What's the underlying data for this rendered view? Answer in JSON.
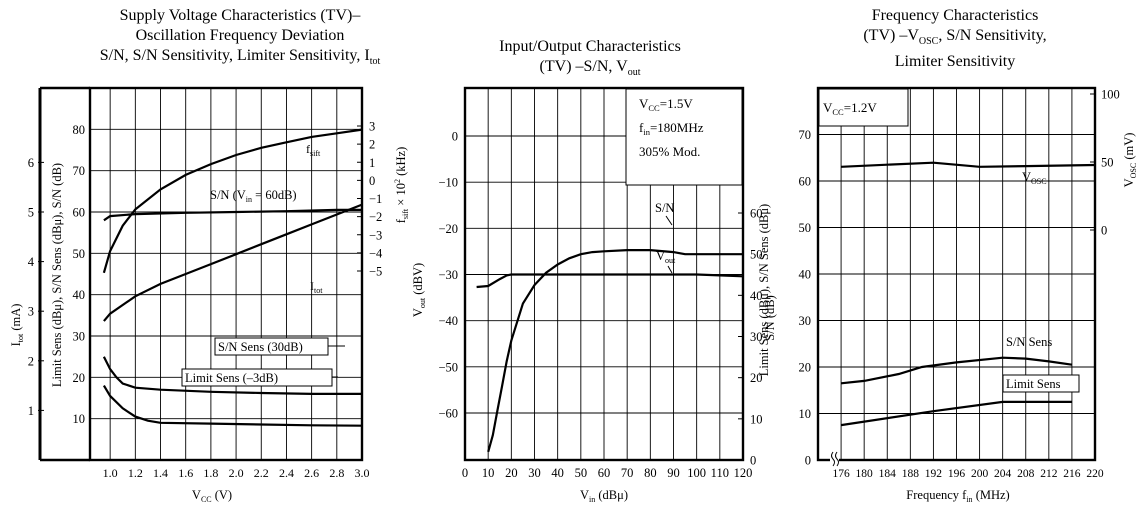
{
  "chart1": {
    "title_l1": "Supply Voltage Characteristics (TV)–",
    "title_l2": "Oscillation Frequency Deviation",
    "title_l3": "S/N, S/N Sensitivity, Limiter Sensitivity, I",
    "title_l3_sub": "tot",
    "xlabel": "V",
    "xlabel_sub": "CC",
    "xlabel_tail": " (V)",
    "ylabel_db": "Limit Sens (dBμ),  S/N Sens (dBμ), S/N (dB)",
    "ylabel_i": "I",
    "ylabel_i_sub": "tot",
    "ylabel_i_tail": " (mA)",
    "ylabel_f": "f",
    "ylabel_f_sub": "sift",
    "ylabel_f_tail": " × 10",
    "ylabel_f_sup": "2",
    "ylabel_f_end": " (kHz)",
    "xticks": [
      "1.0",
      "1.2",
      "1.4",
      "1.6",
      "1.8",
      "2.0",
      "2.2",
      "2.4",
      "2.6",
      "2.8",
      "3.0"
    ],
    "db_ticks": [
      "10",
      "20",
      "30",
      "40",
      "50",
      "60",
      "70",
      "80"
    ],
    "i_ticks": [
      "1",
      "2",
      "3",
      "4",
      "5",
      "6"
    ],
    "f_ticks": [
      "3",
      "2",
      "1",
      "0",
      "−1",
      "−2",
      "−3",
      "−4",
      "−5"
    ],
    "labels": {
      "fsift": "f",
      "fsift_sub": "sift",
      "sn": "S/N (V",
      "sn_sub": "in",
      "sn_tail": " = 60dB)",
      "itot": "I",
      "itot_sub": "tot",
      "snsens": "S/N Sens (30dB)",
      "limsens": "Limit Sens (–3dB)"
    }
  },
  "chart2": {
    "title_l1": "Input/Output Characteristics",
    "title_l2": "(TV) –S/N, V",
    "title_l2_sub": "out",
    "xlabel": "V",
    "xlabel_sub": "in",
    "xlabel_tail": " (dBμ)",
    "ylabel_l": "V",
    "ylabel_l_sub": "out",
    "ylabel_l_tail": " (dBV)",
    "ylabel_r": "S/N (dB)",
    "cond1": "V",
    "cond1_sub": "CC",
    "cond1_tail": "=1.5V",
    "cond2": "f",
    "cond2_sub": "in",
    "cond2_tail": "=180MHz",
    "cond3": "305% Mod.",
    "xticks": [
      "0",
      "10",
      "20",
      "30",
      "40",
      "50",
      "60",
      "70",
      "80",
      "90",
      "100",
      "110",
      "120"
    ],
    "lticks": [
      "0",
      "−10",
      "−20",
      "−30",
      "−40",
      "−50",
      "−60"
    ],
    "rticks": [
      "60",
      "50",
      "40",
      "30",
      "20",
      "10",
      "0"
    ],
    "labels": {
      "sn": "S/N",
      "vout": "V",
      "vout_sub": "out"
    }
  },
  "chart3": {
    "title_l1": "Frequency Characteristics",
    "title_l2": "(TV) –V",
    "title_l2_sub": "OSC",
    "title_l2_tail": ", S/N Sensitivity,",
    "title_l3": "Limiter Sensitivity",
    "xlabel": "Frequency f",
    "xlabel_sub": "in",
    "xlabel_tail": " (MHz)",
    "ylabel_l": "Limit Sens (dBμ), S/N Sens (dBμ)",
    "ylabel_r": "V",
    "ylabel_r_sub": "OSC",
    "ylabel_r_tail": " (mV)",
    "cond": "V",
    "cond_sub": "CC",
    "cond_tail": "=1.2V",
    "xticks": [
      "176",
      "180",
      "184",
      "188",
      "192",
      "196",
      "200",
      "204",
      "208",
      "212",
      "216",
      "220"
    ],
    "lticks": [
      "0",
      "10",
      "20",
      "30",
      "40",
      "50",
      "60",
      "70"
    ],
    "rticks": [
      "100",
      "50",
      "0"
    ],
    "labels": {
      "vosc": "V",
      "vosc_sub": "OSC",
      "snsens": "S/N Sens",
      "limsens": "Limit Sens"
    }
  },
  "chart_data": [
    {
      "type": "line",
      "title": "Supply Voltage Characteristics (TV)– Oscillation Frequency Deviation S/N, S/N Sensitivity, Limiter Sensitivity, Itot",
      "xlabel": "VCC (V)",
      "xlim": [
        0.84,
        3.0
      ],
      "ylim": [
        0,
        90
      ],
      "grid": true,
      "series": [
        {
          "name": "fsift",
          "axis": "fsift",
          "x": [
            0.95,
            1.0,
            1.1,
            1.2,
            1.4,
            1.6,
            1.8,
            2.0,
            2.2,
            2.4,
            2.6,
            2.8,
            3.0
          ],
          "values": [
            -5.1,
            -3.9,
            -2.5,
            -1.6,
            -0.5,
            0.3,
            0.9,
            1.4,
            1.8,
            2.1,
            2.4,
            2.6,
            2.8
          ]
        },
        {
          "name": "S/N (Vin = 60dB)",
          "axis": "dB",
          "x": [
            0.95,
            1.0,
            1.2,
            1.6,
            2.0,
            2.4,
            2.8,
            3.0
          ],
          "values": [
            58,
            59,
            59.5,
            59.8,
            60,
            60.2,
            60.5,
            60.5
          ]
        },
        {
          "name": "Itot",
          "axis": "mA",
          "x": [
            0.95,
            1.0,
            1.2,
            1.4,
            1.6,
            1.8,
            2.0,
            2.2,
            2.4,
            2.6,
            2.8,
            3.0
          ],
          "values": [
            2.8,
            2.95,
            3.3,
            3.55,
            3.75,
            3.95,
            4.15,
            4.35,
            4.55,
            4.75,
            4.95,
            5.15
          ]
        },
        {
          "name": "S/N Sens (30dB)",
          "axis": "dB",
          "x": [
            0.95,
            1.0,
            1.05,
            1.1,
            1.2,
            1.4,
            1.8,
            2.2,
            2.6,
            3.0
          ],
          "values": [
            25,
            22,
            20,
            18.5,
            17.5,
            17,
            16.5,
            16.2,
            16,
            16
          ]
        },
        {
          "name": "Limit Sens (–3dB)",
          "axis": "dB",
          "x": [
            0.95,
            1.0,
            1.1,
            1.2,
            1.3,
            1.4,
            1.8,
            2.2,
            2.6,
            3.0
          ],
          "values": [
            18,
            15.5,
            12.5,
            10.5,
            9.5,
            9,
            8.8,
            8.6,
            8.4,
            8.3
          ]
        }
      ]
    },
    {
      "type": "line",
      "title": "Input/Output Characteristics (TV) –S/N, Vout",
      "xlabel": "Vin (dBμ)",
      "xlim": [
        0,
        120
      ],
      "ylim": [
        -70,
        10
      ],
      "grid": true,
      "series": [
        {
          "name": "S/N",
          "axis": "S/N (dB)",
          "x": [
            10,
            12,
            14,
            16,
            18,
            20,
            25,
            30,
            35,
            40,
            45,
            50,
            55,
            60,
            70,
            80,
            90,
            95,
            100,
            110,
            120
          ],
          "values": [
            2,
            6,
            12,
            18,
            24,
            29,
            38,
            42.5,
            45.5,
            47.5,
            49,
            50,
            50.5,
            50.7,
            51,
            51,
            50.5,
            50,
            50,
            50,
            50
          ]
        },
        {
          "name": "Vout",
          "axis": "Vout (dBV)",
          "x": [
            5,
            10,
            15,
            18,
            20,
            30,
            40,
            60,
            80,
            100,
            110,
            120
          ],
          "values": [
            -32.7,
            -32.5,
            -31,
            -30.2,
            -30,
            -30,
            -30,
            -30,
            -30,
            -30,
            -30.2,
            -30.4
          ]
        }
      ]
    },
    {
      "type": "line",
      "title": "Frequency Characteristics (TV) –VOSC, S/N Sensitivity, Limiter Sensitivity",
      "xlabel": "Frequency fin (MHz)",
      "xlim": [
        172,
        220
      ],
      "ylim": [
        0,
        80
      ],
      "grid": true,
      "series": [
        {
          "name": "VOSC",
          "axis": "VOSC (mV)",
          "x": [
            176,
            184,
            192,
            200,
            208,
            220
          ],
          "values": [
            46.5,
            48,
            49.5,
            46.5,
            47,
            47.8
          ]
        },
        {
          "name": "S/N Sens",
          "axis": "dBμ",
          "x": [
            176,
            180,
            186,
            190,
            196,
            204,
            208,
            212,
            216
          ],
          "values": [
            16.5,
            17,
            18.5,
            20,
            21,
            22,
            21.8,
            21.2,
            20.5
          ]
        },
        {
          "name": "Limit Sens",
          "axis": "dBμ",
          "x": [
            176,
            192,
            204,
            208,
            212,
            216
          ],
          "values": [
            7.5,
            10.5,
            12.5,
            12.5,
            12.5,
            12.5
          ]
        }
      ]
    }
  ]
}
